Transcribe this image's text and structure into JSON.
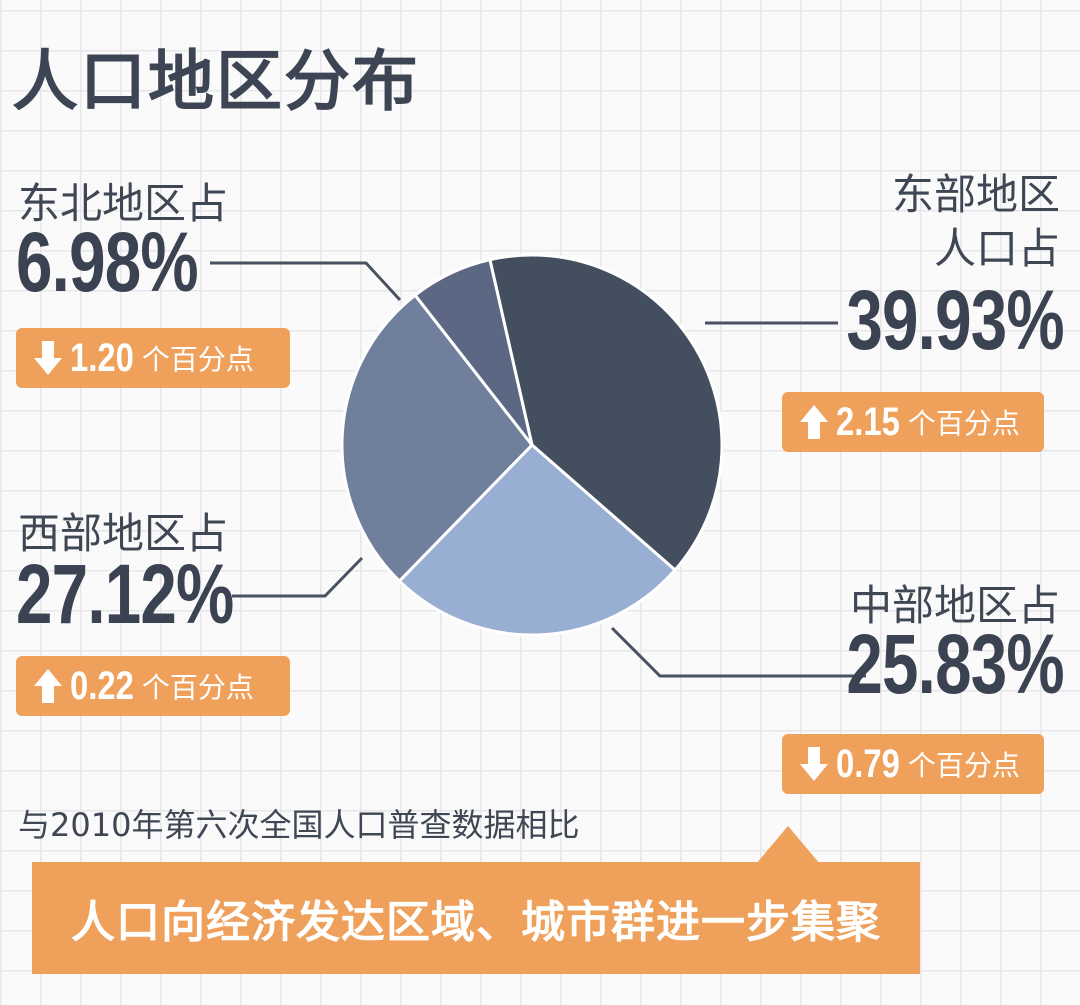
{
  "title": "人口地区分布",
  "chart_data": {
    "type": "pie",
    "title": "人口地区分布",
    "slices": [
      {
        "label": "东部地区人口占",
        "value": 39.93,
        "value_text": "39.93%",
        "change": "2.15",
        "direction": "up",
        "color": "#434e5f"
      },
      {
        "label": "中部地区占",
        "value": 25.83,
        "value_text": "25.83%",
        "change": "0.79",
        "direction": "down",
        "color": "#98aed2"
      },
      {
        "label": "西部地区占",
        "value": 27.12,
        "value_text": "27.12%",
        "change": "0.22",
        "direction": "up",
        "color": "#6f7f9c"
      },
      {
        "label": "东北地区占",
        "value": 6.98,
        "value_text": "6.98%",
        "change": "1.20",
        "direction": "down",
        "color": "#5c6783"
      }
    ],
    "change_unit": "个百分点",
    "east_label_lines": [
      "东部地区",
      "人口占"
    ]
  },
  "note": "与2010年第六次全国人口普查数据相比",
  "banner": "人口向经济发达区域、城市群进一步集聚",
  "colors": {
    "accent": "#efa15b",
    "text": "#3f4754"
  }
}
